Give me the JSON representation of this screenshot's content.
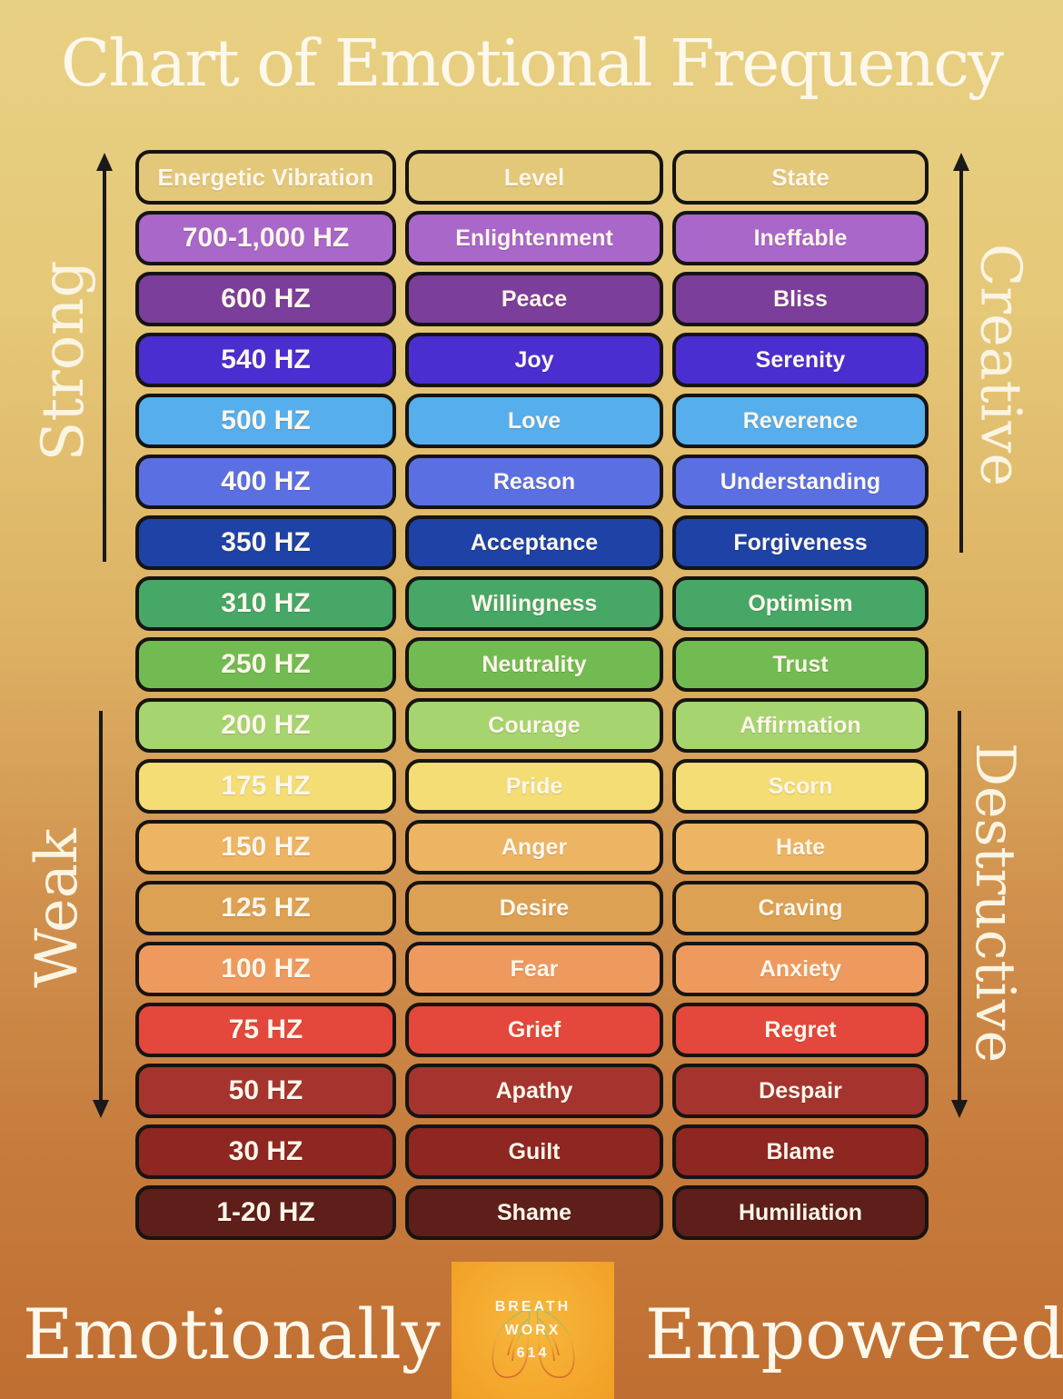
{
  "title": "Chart of Emotional Frequency",
  "axis_labels": {
    "left_top": "Strong",
    "left_bottom": "Weak",
    "right_top": "Creative",
    "right_bottom": "Destructive"
  },
  "footer": {
    "left_word": "Emotionally",
    "right_word": "Empowered",
    "logo_line1": "BREATH",
    "logo_line2": "WORX",
    "logo_line3": "614"
  },
  "colors": {
    "background_top": "#e8d083",
    "background_bottom": "#c06e31",
    "header_row": "#e3c87a",
    "cell_border": "#161412",
    "cell_text": "#fdf6ea",
    "arrow": "#1a1a1a",
    "logo_background": "#f3a62b"
  },
  "table": {
    "headers": [
      "Energetic Vibration",
      "Level",
      "State"
    ],
    "rows": [
      {
        "hz": "700-1,000 HZ",
        "level": "Enlightenment",
        "state": "Ineffable",
        "color": "#a867c9"
      },
      {
        "hz": "600 HZ",
        "level": "Peace",
        "state": "Bliss",
        "color": "#7b3e9a"
      },
      {
        "hz": "540 HZ",
        "level": "Joy",
        "state": "Serenity",
        "color": "#4a2ed0"
      },
      {
        "hz": "500 HZ",
        "level": "Love",
        "state": "Reverence",
        "color": "#56aeec"
      },
      {
        "hz": "400 HZ",
        "level": "Reason",
        "state": "Understanding",
        "color": "#5a70e2"
      },
      {
        "hz": "350 HZ",
        "level": "Acceptance",
        "state": "Forgiveness",
        "color": "#1e42a5"
      },
      {
        "hz": "310 HZ",
        "level": "Willingness",
        "state": "Optimism",
        "color": "#46a766"
      },
      {
        "hz": "250 HZ",
        "level": "Neutrality",
        "state": "Trust",
        "color": "#72bb52"
      },
      {
        "hz": "200 HZ",
        "level": "Courage",
        "state": "Affirmation",
        "color": "#a6d46f"
      },
      {
        "hz": "175 HZ",
        "level": "Pride",
        "state": "Scorn",
        "color": "#f3dd74"
      },
      {
        "hz": "150 HZ",
        "level": "Anger",
        "state": "Hate",
        "color": "#ecb463"
      },
      {
        "hz": "125 HZ",
        "level": "Desire",
        "state": "Craving",
        "color": "#dda153"
      },
      {
        "hz": "100 HZ",
        "level": "Fear",
        "state": "Anxiety",
        "color": "#ee9a5e"
      },
      {
        "hz": "75 HZ",
        "level": "Grief",
        "state": "Regret",
        "color": "#e4473c"
      },
      {
        "hz": "50 HZ",
        "level": "Apathy",
        "state": "Despair",
        "color": "#a5342e"
      },
      {
        "hz": "30 HZ",
        "level": "Guilt",
        "state": "Blame",
        "color": "#8e2621"
      },
      {
        "hz": "1-20 HZ",
        "level": "Shame",
        "state": "Humiliation",
        "color": "#5e1e19"
      }
    ]
  },
  "chart_data": {
    "type": "table",
    "title": "Chart of Emotional Frequency",
    "columns": [
      "Energetic Vibration",
      "Level",
      "State"
    ],
    "rows": [
      [
        "700-1,000 HZ",
        "Enlightenment",
        "Ineffable"
      ],
      [
        "600 HZ",
        "Peace",
        "Bliss"
      ],
      [
        "540 HZ",
        "Joy",
        "Serenity"
      ],
      [
        "500 HZ",
        "Love",
        "Reverence"
      ],
      [
        "400 HZ",
        "Reason",
        "Understanding"
      ],
      [
        "350 HZ",
        "Acceptance",
        "Forgiveness"
      ],
      [
        "310 HZ",
        "Willingness",
        "Optimism"
      ],
      [
        "250 HZ",
        "Neutrality",
        "Trust"
      ],
      [
        "200 HZ",
        "Courage",
        "Affirmation"
      ],
      [
        "175 HZ",
        "Pride",
        "Scorn"
      ],
      [
        "150 HZ",
        "Anger",
        "Hate"
      ],
      [
        "125 HZ",
        "Desire",
        "Craving"
      ],
      [
        "100 HZ",
        "Fear",
        "Anxiety"
      ],
      [
        "75 HZ",
        "Grief",
        "Regret"
      ],
      [
        "50 HZ",
        "Apathy",
        "Despair"
      ],
      [
        "30 HZ",
        "Guilt",
        "Blame"
      ],
      [
        "1-20 HZ",
        "Shame",
        "Humiliation"
      ]
    ],
    "annotations": [
      "Strong",
      "Weak",
      "Creative",
      "Destructive",
      "Emotionally",
      "Empowered"
    ],
    "layout": "rows ordered high frequency (top, strong/creative) to low frequency (bottom, weak/destructive)"
  }
}
